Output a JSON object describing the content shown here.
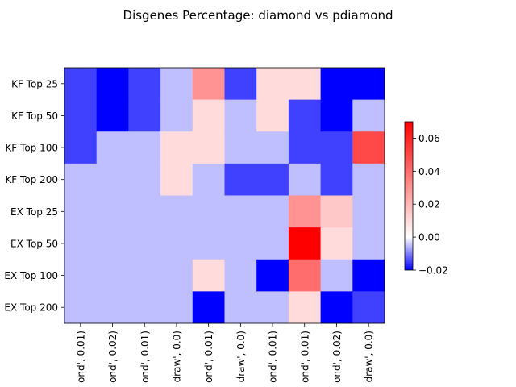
{
  "chart_data": {
    "type": "heatmap",
    "title": "Disgenes Percentage: diamond vs pdiamond",
    "y_labels": [
      "KF Top 25",
      "KF Top 50",
      "KF Top 100",
      "KF Top 200",
      "EX Top 25",
      "EX Top 50",
      "EX Top 100",
      "EX Top 200"
    ],
    "x_labels": [
      "ond', 0.01)",
      "ond', 0.02)",
      "ond', 0.01)",
      "draw', 0.0)",
      "ond', 0.01)",
      "draw', 0.0)",
      "ond', 0.01)",
      "ond', 0.01)",
      "ond', 0.02)",
      "draw', 0.0)"
    ],
    "values": [
      [
        -0.015,
        -0.02,
        -0.015,
        -0.005,
        0.03,
        -0.015,
        0.01,
        0.01,
        -0.02,
        -0.02
      ],
      [
        -0.015,
        -0.02,
        -0.015,
        -0.005,
        0.01,
        -0.005,
        0.01,
        -0.015,
        -0.02,
        -0.005
      ],
      [
        -0.015,
        -0.005,
        -0.005,
        0.01,
        0.01,
        -0.005,
        -0.005,
        -0.015,
        -0.015,
        0.05
      ],
      [
        -0.005,
        -0.005,
        -0.005,
        0.01,
        -0.005,
        -0.015,
        -0.015,
        -0.005,
        -0.015,
        -0.005
      ],
      [
        -0.005,
        -0.005,
        -0.005,
        -0.005,
        -0.005,
        -0.005,
        -0.005,
        0.03,
        0.015,
        -0.005
      ],
      [
        -0.005,
        -0.005,
        -0.005,
        -0.005,
        -0.005,
        -0.005,
        -0.005,
        0.07,
        0.01,
        -0.005
      ],
      [
        -0.005,
        -0.005,
        -0.005,
        -0.005,
        0.01,
        -0.005,
        -0.02,
        0.04,
        -0.005,
        -0.02
      ],
      [
        -0.005,
        -0.005,
        -0.005,
        -0.005,
        -0.02,
        -0.005,
        -0.005,
        0.01,
        -0.02,
        -0.015
      ]
    ],
    "colormap": "bwr",
    "color_min": -0.02,
    "color_max": 0.07,
    "colorbar_ticks": [
      "0.06",
      "0.04",
      "0.02",
      "0.00",
      "−0.02"
    ],
    "colorbar_tick_values": [
      0.06,
      0.04,
      0.02,
      0.0,
      -0.02
    ]
  }
}
